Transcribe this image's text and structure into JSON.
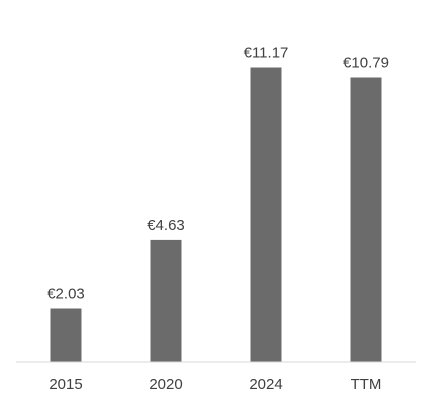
{
  "chart_data": {
    "type": "bar",
    "categories": [
      "2015",
      "2020",
      "2024",
      "TTM"
    ],
    "values": [
      2.03,
      4.63,
      11.17,
      10.79
    ],
    "data_labels": [
      "€2.03",
      "€4.63",
      "€11.17",
      "€10.79"
    ],
    "ylim": [
      0,
      12.1
    ],
    "grid": false,
    "legend": "none",
    "colors": {
      "bar": "#6b6b6b",
      "axis": "#d9d9d9",
      "text": "#404040"
    }
  }
}
